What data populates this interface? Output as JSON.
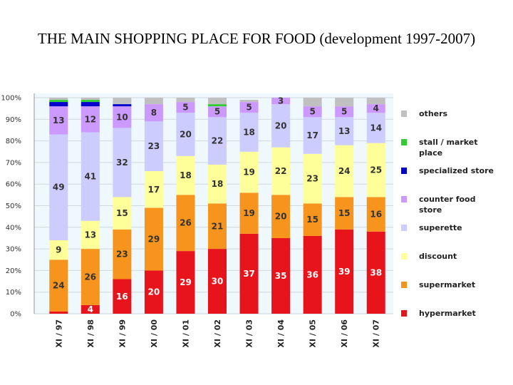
{
  "title": "THE MAIN SHOPPING PLACE FOR FOOD (development 1997-2007)",
  "chart_data": {
    "type": "bar",
    "stacked": true,
    "percent": true,
    "categories": [
      "XI / 97",
      "XI / 98",
      "XI / 99",
      "XI / 00",
      "XI / 01",
      "XI / 02",
      "XI / 03",
      "XI / 04",
      "XI / 05",
      "XI / 06",
      "XI / 07"
    ],
    "y_ticks": [
      "0%",
      "10%",
      "20%",
      "30%",
      "40%",
      "50%",
      "60%",
      "70%",
      "80%",
      "90%",
      "100%"
    ],
    "ylim": [
      0,
      100
    ],
    "legend_position": "right",
    "series": [
      {
        "name": "hypermarket",
        "color": "#e8141b",
        "values": [
          1,
          4,
          16,
          20,
          29,
          30,
          37,
          35,
          36,
          39,
          38
        ],
        "labels": [
          "",
          "4",
          "16",
          "20",
          "29",
          "30",
          "37",
          "35",
          "36",
          "39",
          "38"
        ]
      },
      {
        "name": "supermarket",
        "color": "#f7941d",
        "values": [
          24,
          26,
          23,
          29,
          26,
          21,
          19,
          20,
          15,
          15,
          16
        ],
        "labels": [
          "24",
          "26",
          "23",
          "29",
          "26",
          "21",
          "19",
          "20",
          "15",
          "15",
          "16"
        ]
      },
      {
        "name": "discount",
        "color": "#ffff99",
        "values": [
          9,
          13,
          15,
          17,
          18,
          18,
          19,
          22,
          23,
          24,
          25
        ],
        "labels": [
          "9",
          "13",
          "15",
          "17",
          "18",
          "18",
          "19",
          "22",
          "23",
          "24",
          "25"
        ]
      },
      {
        "name": "superette",
        "color": "#ccccff",
        "values": [
          49,
          41,
          32,
          23,
          20,
          22,
          18,
          20,
          17,
          13,
          14
        ],
        "labels": [
          "49",
          "41",
          "32",
          "23",
          "20",
          "22",
          "18",
          "20",
          "17",
          "13",
          "14"
        ]
      },
      {
        "name": "counter food store",
        "color": "#cc99ff",
        "values": [
          13,
          12,
          10,
          8,
          5,
          5,
          5,
          3,
          5,
          5,
          4
        ],
        "labels": [
          "13",
          "12",
          "10",
          "8",
          "5",
          "5",
          "5",
          "3",
          "5",
          "5",
          "4"
        ]
      },
      {
        "name": "specialized store",
        "color": "#0000cc",
        "values": [
          2,
          2,
          1,
          0,
          0,
          0,
          0,
          0,
          0,
          0,
          0
        ],
        "labels": [
          "",
          "",
          "",
          "",
          "",
          "",
          "",
          "",
          "",
          "",
          ""
        ]
      },
      {
        "name": "stall / market place",
        "color": "#33cc33",
        "values": [
          1,
          1,
          0,
          0,
          0,
          1,
          0,
          0,
          0,
          0,
          0
        ],
        "labels": [
          "",
          "",
          "",
          "",
          "",
          "",
          "",
          "",
          "",
          "",
          ""
        ]
      },
      {
        "name": "others",
        "color": "#c0c0c0",
        "values": [
          1,
          1,
          3,
          3,
          2,
          3,
          1,
          2,
          4,
          4,
          3
        ],
        "labels": [
          "",
          "",
          "",
          "",
          "",
          "",
          "",
          "",
          "",
          "",
          ""
        ]
      }
    ],
    "legend_order": [
      "others",
      "stall / market place",
      "specialized store",
      "counter food store",
      "superette",
      "discount",
      "supermarket",
      "hypermarket"
    ],
    "legend_lines": {
      "others": [
        "others"
      ],
      "stall / market place": [
        "stall / market",
        "place"
      ],
      "specialized store": [
        "specialized store"
      ],
      "counter food store": [
        "counter food",
        "store"
      ],
      "superette": [
        "superette"
      ],
      "discount": [
        "discount"
      ],
      "supermarket": [
        "supermarket"
      ],
      "hypermarket": [
        "hypermarket"
      ]
    }
  }
}
